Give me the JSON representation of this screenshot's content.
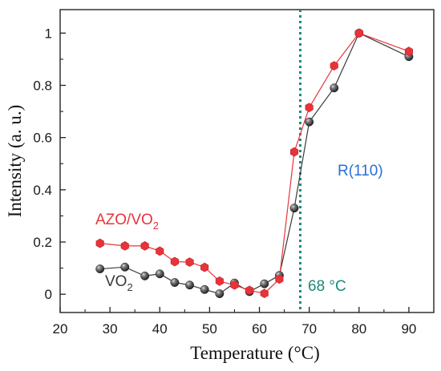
{
  "chart_data": {
    "type": "line",
    "xlabel": "Temperature (°C)",
    "ylabel": "Intensity (a. u.)",
    "xlim": [
      20,
      95
    ],
    "ylim": [
      -0.07,
      1.09
    ],
    "xticks": [
      20,
      30,
      40,
      50,
      60,
      70,
      80,
      90
    ],
    "xtick_labels": [
      "20",
      "30",
      "40",
      "50",
      "60",
      "70",
      "80",
      "90"
    ],
    "yticks": [
      0,
      0.2,
      0.4,
      0.6,
      0.8,
      1
    ],
    "ytick_labels": [
      "0",
      "0.2",
      "0.4",
      "0.6",
      "0.8",
      "1"
    ],
    "grid": false,
    "series": [
      {
        "name": "AZO/VO",
        "name_subscript": "2",
        "color": "#e8333a",
        "marker": "hexagon",
        "x": [
          28,
          33,
          37,
          40,
          43,
          46,
          49,
          52,
          55,
          58,
          61,
          64,
          67,
          70,
          75,
          80,
          90
        ],
        "y": [
          0.195,
          0.185,
          0.185,
          0.165,
          0.125,
          0.123,
          0.103,
          0.05,
          0.035,
          0.015,
          0.003,
          0.058,
          0.545,
          0.715,
          0.875,
          1.0,
          0.93
        ]
      },
      {
        "name": "VO",
        "name_subscript": "2",
        "color": "#3a3a3a",
        "marker": "sphere",
        "x": [
          28,
          33,
          37,
          40,
          43,
          46,
          49,
          52,
          55,
          58,
          61,
          64,
          67,
          70,
          75,
          80,
          90
        ],
        "y": [
          0.097,
          0.104,
          0.07,
          0.078,
          0.045,
          0.035,
          0.018,
          0.002,
          0.043,
          0.01,
          0.04,
          0.072,
          0.33,
          0.66,
          0.79,
          1.0,
          0.91
        ]
      }
    ],
    "vline": {
      "x": 68.2,
      "color": "#1a8a7a",
      "style": "dotted"
    },
    "annotations": [
      {
        "text": "68 °C",
        "color": "#1a8a7a"
      },
      {
        "text": "R(110)",
        "color": "#2a6fd6"
      }
    ]
  }
}
